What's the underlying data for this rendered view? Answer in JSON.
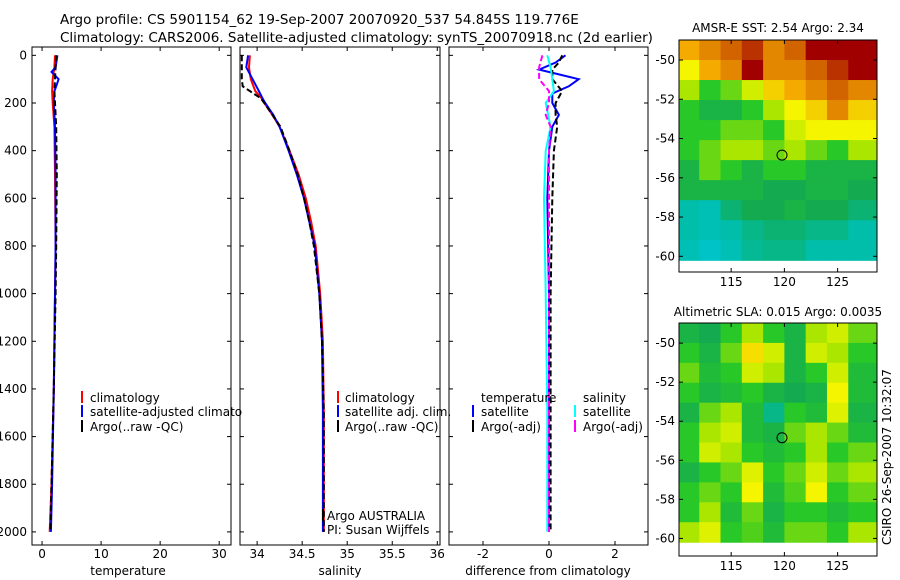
{
  "header": {
    "title_line1": "Argo profile: CS 5901154_62 19-Sep-2007 20070920_537 54.845S 119.776E",
    "title_line2": "Climatology: CARS2006. Satellite-adjusted climatology: synTS_20070918.nc (2d earlier)"
  },
  "footer": {
    "stamp": "CSIRO 26-Sep-2007 10:32:07"
  },
  "annotations": {
    "argo_country": "Argo AUSTRALIA",
    "pi": "PI: Susan Wijffels"
  },
  "chart_data": [
    {
      "type": "line",
      "id": "temperature",
      "xlabel": "temperature",
      "ylabel": "",
      "xlim": [
        -1.7,
        32
      ],
      "ylim": [
        2055,
        -35
      ],
      "xticks": [
        0,
        10,
        20,
        30
      ],
      "yticks": [
        0,
        200,
        400,
        600,
        800,
        1000,
        1200,
        1400,
        1600,
        1800,
        2000
      ],
      "legend": [
        "climatology",
        "satellite-adjusted climatology",
        "Argo(..raw -QC)"
      ],
      "series": [
        {
          "name": "climatology",
          "color": "#ff0000",
          "dash": false,
          "depth": [
            0,
            50,
            100,
            150,
            200,
            300,
            500,
            800,
            1000,
            1400,
            1800,
            2000
          ],
          "values": [
            2.2,
            2.1,
            1.8,
            1.7,
            1.8,
            2.1,
            2.2,
            2.3,
            2.2,
            2.0,
            1.6,
            1.3
          ]
        },
        {
          "name": "satellite-adjusted climatology",
          "color": "#0000ff",
          "dash": false,
          "depth": [
            0,
            50,
            70,
            100,
            130,
            150,
            200,
            300,
            500,
            800,
            1000,
            1400,
            1800,
            2000
          ],
          "values": [
            2.6,
            2.3,
            1.6,
            2.8,
            2.4,
            2.1,
            2.0,
            2.2,
            2.3,
            2.3,
            2.2,
            2.0,
            1.7,
            1.5
          ]
        },
        {
          "name": "Argo(..raw -QC)",
          "color": "#000000",
          "dash": true,
          "depth": [
            0,
            50,
            100,
            150,
            200,
            300,
            500,
            800,
            1000,
            1400,
            1800,
            2000
          ],
          "values": [
            2.4,
            2.3,
            2.2,
            2.1,
            2.2,
            2.4,
            2.5,
            2.4,
            2.3,
            2.0,
            1.6,
            1.4
          ]
        }
      ]
    },
    {
      "type": "line",
      "id": "salinity",
      "xlabel": "salinity",
      "xlim": [
        33.81,
        36.03
      ],
      "ylim": [
        2055,
        -35
      ],
      "xticks": [
        34,
        34.5,
        35,
        35.5,
        36
      ],
      "legend": [
        "climatology",
        "satellite adj. clim.",
        "Argo(..raw -QC)"
      ],
      "series": [
        {
          "name": "climatology",
          "color": "#ff0000",
          "dash": false,
          "depth": [
            0,
            50,
            100,
            150,
            180,
            200,
            250,
            300,
            400,
            500,
            600,
            700,
            800,
            1000,
            1200,
            1500,
            2000
          ],
          "values": [
            33.92,
            33.91,
            33.93,
            33.98,
            34.05,
            34.08,
            34.17,
            34.25,
            34.36,
            34.46,
            34.54,
            34.6,
            34.65,
            34.7,
            34.73,
            34.74,
            34.74
          ]
        },
        {
          "name": "satellite adj. clim.",
          "color": "#0000ff",
          "dash": false,
          "depth": [
            0,
            50,
            100,
            150,
            180,
            200,
            250,
            300,
            400,
            500,
            600,
            700,
            800,
            1000,
            1200,
            1500,
            2000
          ],
          "values": [
            33.9,
            33.88,
            33.95,
            34.02,
            34.06,
            34.09,
            34.18,
            34.25,
            34.35,
            34.44,
            34.52,
            34.58,
            34.64,
            34.69,
            34.72,
            34.73,
            34.73
          ]
        },
        {
          "name": "Argo(..raw -QC)",
          "color": "#000000",
          "dash": true,
          "depth": [
            0,
            50,
            100,
            130,
            150,
            180,
            200,
            250,
            300,
            400,
            500,
            600,
            700,
            800,
            1000,
            1200,
            1500,
            2000
          ],
          "values": [
            33.83,
            33.83,
            33.83,
            33.84,
            33.92,
            34.04,
            34.08,
            34.17,
            34.26,
            34.36,
            34.45,
            34.52,
            34.58,
            34.63,
            34.69,
            34.72,
            34.74,
            34.74
          ]
        }
      ]
    },
    {
      "type": "line",
      "id": "difference",
      "xlabel": "difference from climatology",
      "xlim": [
        -3.03,
        3.0
      ],
      "ylim": [
        2055,
        -35
      ],
      "xticks": [
        -2,
        0,
        2
      ],
      "legend_titles": [
        "temperature",
        "salinity"
      ],
      "legend": [
        "satellite",
        "Argo(-adj)",
        "satellite",
        "Argo(-adj)"
      ],
      "series": [
        {
          "name": "temperature satellite",
          "color": "#0000ff",
          "dash": false,
          "depth": [
            0,
            30,
            60,
            80,
            100,
            130,
            160,
            200,
            250,
            300,
            400,
            600,
            1000,
            1500,
            2000
          ],
          "values": [
            0.5,
            0.2,
            -0.3,
            0.3,
            0.9,
            0.6,
            0.1,
            0.1,
            0.3,
            0.1,
            0.0,
            -0.05,
            0.0,
            0.0,
            0.0
          ]
        },
        {
          "name": "temperature Argo(-adj)",
          "color": "#000000",
          "dash": true,
          "depth": [
            0,
            30,
            60,
            100,
            150,
            200,
            250,
            300,
            400,
            600,
            1000,
            1500,
            2000
          ],
          "values": [
            0.4,
            0.3,
            0.1,
            0.1,
            0.4,
            0.2,
            0.2,
            0.25,
            0.15,
            0.1,
            0.05,
            0.05,
            0.05
          ]
        },
        {
          "name": "salinity satellite",
          "color": "#00ffff",
          "dash": false,
          "depth": [
            0,
            50,
            100,
            150,
            200,
            300,
            400,
            600,
            1000,
            1500,
            2000
          ],
          "values": [
            -0.05,
            0.05,
            0.1,
            0.15,
            -0.1,
            0.05,
            -0.1,
            -0.15,
            -0.1,
            -0.05,
            -0.05
          ]
        },
        {
          "name": "salinity Argo(-adj)",
          "color": "#ff00ff",
          "dash": true,
          "depth": [
            0,
            50,
            100,
            150,
            200,
            250,
            300,
            400,
            600,
            1000,
            1500,
            2000
          ],
          "values": [
            -0.2,
            -0.3,
            -0.3,
            0.0,
            0.0,
            -0.1,
            0.05,
            0.0,
            0.0,
            0.0,
            0.0,
            0.0
          ]
        }
      ]
    },
    {
      "type": "heatmap",
      "id": "sst_map",
      "title": "AMSR-E SST: 2.54 Argo: 2.34",
      "xlim": [
        110.1,
        128.7
      ],
      "ylim": [
        -60.8,
        -48.98
      ],
      "xticks": [
        115,
        120,
        125
      ],
      "yticks": [
        -50,
        -52,
        -54,
        -56,
        -58,
        -60
      ],
      "lon_edges": [
        110,
        112,
        114,
        116,
        118,
        120,
        122,
        124,
        126,
        128.7
      ],
      "lat_top": -48.98,
      "lat_step": 1.02,
      "marker": {
        "lon": 119.776,
        "lat": -54.845
      },
      "levels": [
        [
          0.75,
          0.8,
          0.85,
          0.9,
          0.8,
          0.85,
          0.95,
          0.95,
          0.95
        ],
        [
          0.65,
          0.75,
          0.8,
          0.95,
          0.8,
          0.8,
          0.85,
          0.9,
          0.95
        ],
        [
          0.55,
          0.45,
          0.5,
          0.6,
          0.7,
          0.75,
          0.8,
          0.85,
          0.8
        ],
        [
          0.45,
          0.4,
          0.4,
          0.45,
          0.55,
          0.65,
          0.7,
          0.8,
          0.7
        ],
        [
          0.45,
          0.45,
          0.5,
          0.5,
          0.45,
          0.6,
          0.65,
          0.65,
          0.65
        ],
        [
          0.45,
          0.5,
          0.55,
          0.55,
          0.5,
          0.55,
          0.5,
          0.45,
          0.55
        ],
        [
          0.4,
          0.5,
          0.45,
          0.4,
          0.45,
          0.45,
          0.4,
          0.4,
          0.4
        ],
        [
          0.4,
          0.4,
          0.4,
          0.4,
          0.38,
          0.38,
          0.4,
          0.4,
          0.38
        ],
        [
          0.3,
          0.28,
          0.35,
          0.38,
          0.38,
          0.4,
          0.38,
          0.38,
          0.35
        ],
        [
          0.3,
          0.28,
          0.3,
          0.33,
          0.35,
          0.35,
          0.33,
          0.33,
          0.3
        ],
        [
          0.28,
          0.25,
          0.28,
          0.32,
          0.33,
          0.33,
          0.3,
          0.3,
          0.3
        ]
      ]
    },
    {
      "type": "heatmap",
      "id": "sla_map",
      "title": "Altimetric SLA: 0.015 Argo: 0.0035",
      "xlim": [
        110.1,
        128.7
      ],
      "ylim": [
        -60.9,
        -48.97
      ],
      "xticks": [
        115,
        120,
        125
      ],
      "yticks": [
        -50,
        -52,
        -54,
        -56,
        -58,
        -60
      ],
      "lon_edges": [
        110,
        112,
        114,
        116,
        118,
        120,
        122,
        124,
        126,
        128.7
      ],
      "lat_top": -48.97,
      "lat_step": 1.02,
      "marker": {
        "lon": 119.776,
        "lat": -54.845
      },
      "levels": [
        [
          0.4,
          0.38,
          0.45,
          0.55,
          0.45,
          0.4,
          0.55,
          0.6,
          0.5
        ],
        [
          0.45,
          0.4,
          0.5,
          0.68,
          0.6,
          0.4,
          0.6,
          0.55,
          0.45
        ],
        [
          0.5,
          0.42,
          0.45,
          0.6,
          0.55,
          0.4,
          0.45,
          0.6,
          0.42
        ],
        [
          0.45,
          0.4,
          0.42,
          0.45,
          0.4,
          0.38,
          0.4,
          0.65,
          0.42
        ],
        [
          0.4,
          0.5,
          0.55,
          0.42,
          0.33,
          0.45,
          0.42,
          0.62,
          0.4
        ],
        [
          0.45,
          0.55,
          0.6,
          0.42,
          0.4,
          0.5,
          0.55,
          0.5,
          0.42
        ],
        [
          0.45,
          0.6,
          0.55,
          0.45,
          0.42,
          0.45,
          0.55,
          0.45,
          0.5
        ],
        [
          0.4,
          0.45,
          0.5,
          0.62,
          0.45,
          0.5,
          0.6,
          0.5,
          0.55
        ],
        [
          0.45,
          0.5,
          0.45,
          0.65,
          0.42,
          0.48,
          0.65,
          0.45,
          0.5
        ],
        [
          0.45,
          0.55,
          0.42,
          0.5,
          0.4,
          0.45,
          0.45,
          0.42,
          0.45
        ],
        [
          0.55,
          0.62,
          0.45,
          0.48,
          0.42,
          0.5,
          0.5,
          0.45,
          0.55
        ]
      ]
    }
  ]
}
